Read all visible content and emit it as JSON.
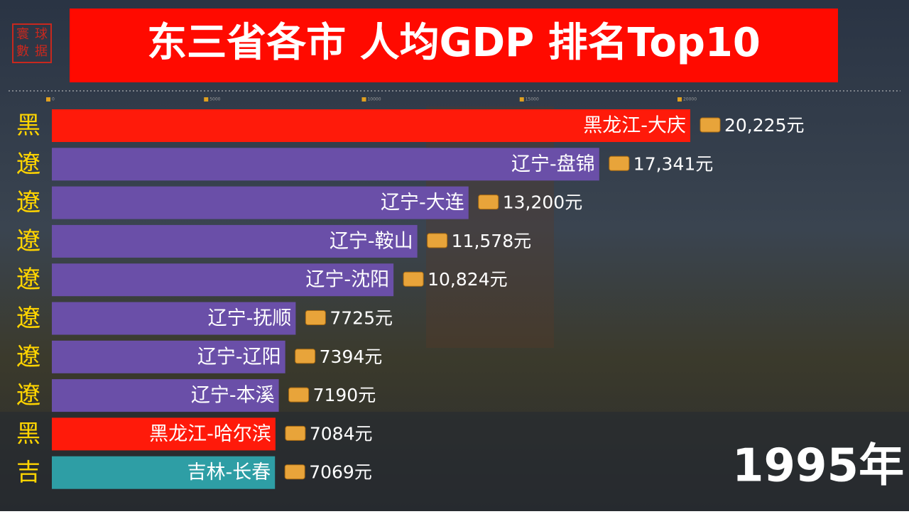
{
  "chart_data": {
    "type": "bar",
    "orientation": "horizontal",
    "title": "东三省各市 人均GDP 排名Top10",
    "logo": [
      "寰",
      "球",
      "數",
      "据"
    ],
    "period": "1995年",
    "regions": [
      "黑",
      "遼",
      "遼",
      "遼",
      "遼",
      "遼",
      "遼",
      "遼",
      "黑",
      "吉"
    ],
    "categories": [
      "黑龙江-大庆",
      "辽宁-盘锦",
      "辽宁-大连",
      "辽宁-鞍山",
      "辽宁-沈阳",
      "辽宁-抚顺",
      "辽宁-辽阳",
      "辽宁-本溪",
      "黑龙江-哈尔滨",
      "吉林-长春"
    ],
    "values": [
      20225,
      17341,
      13200,
      11578,
      10824,
      7725,
      7394,
      7190,
      7084,
      7069
    ],
    "value_labels": [
      "20,225元",
      "17,341元",
      "13,200元",
      "11,578元",
      "10,824元",
      "7725元",
      "7394元",
      "7190元",
      "7084元",
      "7069元"
    ],
    "colors": [
      "#ff1a0a",
      "#6a4fa8",
      "#6a4fa8",
      "#6a4fa8",
      "#6a4fa8",
      "#6a4fa8",
      "#6a4fa8",
      "#6a4fa8",
      "#ff1a0a",
      "#2e9ea5"
    ],
    "xlim": [
      0,
      20225
    ],
    "xticks": [
      0,
      5000,
      10000,
      15000,
      20000
    ]
  }
}
